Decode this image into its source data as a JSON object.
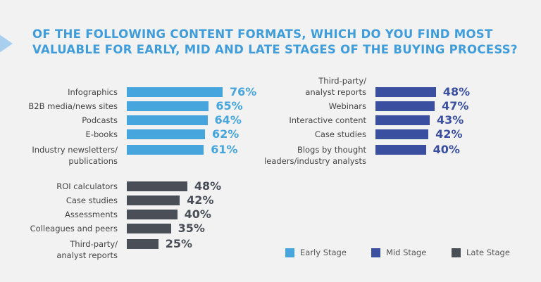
{
  "title_line1": "OF THE FOLLOWING CONTENT FORMATS, WHICH DO YOU FIND MOST",
  "title_line2": "VALUABLE FOR EARLY, MID AND LATE STAGES OF THE BUYING PROCESS?",
  "colors": {
    "early": "#45a5dc",
    "mid": "#3a4fa0",
    "late": "#4a4e57",
    "title": "#3f9ddb"
  },
  "chart_data": [
    {
      "type": "bar",
      "orientation": "horizontal",
      "series": [
        {
          "name": "Early Stage"
        }
      ],
      "categories": [
        "Infographics",
        "B2B media/news sites",
        "Podcasts",
        "E-books",
        "Industry newsletters/\npublications"
      ],
      "values": [
        76,
        65,
        64,
        62,
        61
      ],
      "value_labels": [
        "76%",
        "65%",
        "64%",
        "62%",
        "61%"
      ],
      "unit": "%"
    },
    {
      "type": "bar",
      "orientation": "horizontal",
      "series": [
        {
          "name": "Mid Stage"
        }
      ],
      "categories": [
        "Third-party/\nanalyst reports",
        "Webinars",
        "Interactive content",
        "Case studies",
        "Blogs by thought\nleaders/industry analysts"
      ],
      "values": [
        48,
        47,
        43,
        42,
        40
      ],
      "value_labels": [
        "48%",
        "47%",
        "43%",
        "42%",
        "40%"
      ],
      "unit": "%"
    },
    {
      "type": "bar",
      "orientation": "horizontal",
      "series": [
        {
          "name": "Late Stage"
        }
      ],
      "categories": [
        "ROI calculators",
        "Case studies",
        "Assessments",
        "Colleagues and peers",
        "Third-party/\nanalyst reports"
      ],
      "values": [
        48,
        42,
        40,
        35,
        25
      ],
      "value_labels": [
        "48%",
        "42%",
        "40%",
        "35%",
        "25%"
      ],
      "unit": "%"
    }
  ],
  "legend": [
    {
      "label": "Early Stage",
      "color": "#45a5dc"
    },
    {
      "label": "Mid Stage",
      "color": "#3a4fa0"
    },
    {
      "label": "Late Stage",
      "color": "#4a4e57"
    }
  ]
}
